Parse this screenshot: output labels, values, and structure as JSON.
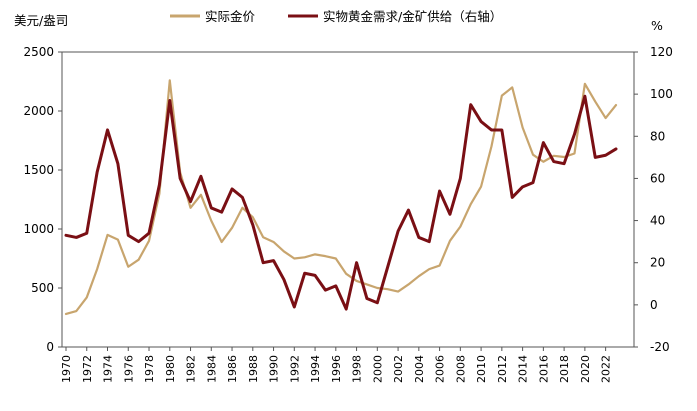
{
  "chart_data": {
    "type": "line",
    "left_unit": "美元/盎司",
    "right_unit": "%",
    "legend_position": "top",
    "y_left": {
      "min": 0,
      "max": 2500,
      "ticks": [
        0,
        500,
        1000,
        1500,
        2000,
        2500
      ]
    },
    "y_right": {
      "min": -20,
      "max": 120,
      "ticks": [
        -20,
        0,
        20,
        40,
        60,
        80,
        100,
        120
      ]
    },
    "x_ticks": [
      1970,
      1972,
      1974,
      1976,
      1978,
      1980,
      1982,
      1984,
      1986,
      1988,
      1990,
      1992,
      1994,
      1996,
      1998,
      2000,
      2002,
      2004,
      2006,
      2008,
      2010,
      2012,
      2014,
      2016,
      2018,
      2020,
      2022
    ],
    "x_tick_labels": [
      "1970",
      "1972",
      "1974",
      "1976",
      "1978",
      "1980",
      "1982",
      "1984",
      "1986",
      "1988",
      "1990",
      "1992",
      "1994",
      "1996",
      "1998",
      "2000",
      "2002",
      "2004",
      "2006",
      "2008",
      "2010",
      "2012",
      "2014",
      "2016",
      "2018",
      "2020",
      "2022"
    ],
    "x_range": [
      1970,
      2023
    ],
    "series": [
      {
        "name": "实际金价",
        "axis": "left",
        "color": "#c8a56e",
        "x": [
          1970,
          1971,
          1972,
          1973,
          1974,
          1975,
          1976,
          1977,
          1978,
          1979,
          1980,
          1981,
          1982,
          1983,
          1984,
          1985,
          1986,
          1987,
          1988,
          1989,
          1990,
          1991,
          1992,
          1993,
          1994,
          1995,
          1996,
          1997,
          1998,
          1999,
          2000,
          2001,
          2002,
          2003,
          2004,
          2005,
          2006,
          2007,
          2008,
          2009,
          2010,
          2011,
          2012,
          2013,
          2014,
          2015,
          2016,
          2017,
          2018,
          2019,
          2020,
          2021,
          2022,
          2023
        ],
        "values": [
          280,
          305,
          420,
          660,
          950,
          910,
          680,
          740,
          900,
          1300,
          2260,
          1480,
          1180,
          1290,
          1070,
          890,
          1010,
          1180,
          1100,
          930,
          890,
          810,
          750,
          760,
          785,
          770,
          750,
          620,
          560,
          530,
          500,
          490,
          470,
          530,
          600,
          660,
          690,
          900,
          1020,
          1210,
          1360,
          1700,
          2130,
          2200,
          1860,
          1630,
          1570,
          1620,
          1610,
          1640,
          2230,
          2080,
          1940,
          2050
        ]
      },
      {
        "name": "实物黄金需求/金矿供给（右轴）",
        "axis": "right",
        "color": "#7a0f14",
        "x": [
          1970,
          1971,
          1972,
          1973,
          1974,
          1975,
          1976,
          1977,
          1978,
          1979,
          1980,
          1981,
          1982,
          1983,
          1984,
          1985,
          1986,
          1987,
          1988,
          1989,
          1990,
          1991,
          1992,
          1993,
          1994,
          1995,
          1996,
          1997,
          1998,
          1999,
          2000,
          2001,
          2002,
          2003,
          2004,
          2005,
          2006,
          2007,
          2008,
          2009,
          2010,
          2011,
          2012,
          2013,
          2014,
          2015,
          2016,
          2017,
          2018,
          2019,
          2020,
          2021,
          2022,
          2023
        ],
        "values": [
          33,
          32,
          34,
          63,
          83,
          67,
          33,
          30,
          34,
          57,
          97,
          60,
          49,
          61,
          46,
          44,
          55,
          51,
          38,
          20,
          21,
          12,
          -1,
          15,
          14,
          7,
          9,
          -2,
          20,
          3,
          1,
          18,
          35,
          45,
          32,
          30,
          54,
          43,
          60,
          95,
          87,
          83,
          83,
          51,
          56,
          58,
          77,
          68,
          67,
          81,
          99,
          70,
          71,
          74
        ]
      }
    ]
  }
}
